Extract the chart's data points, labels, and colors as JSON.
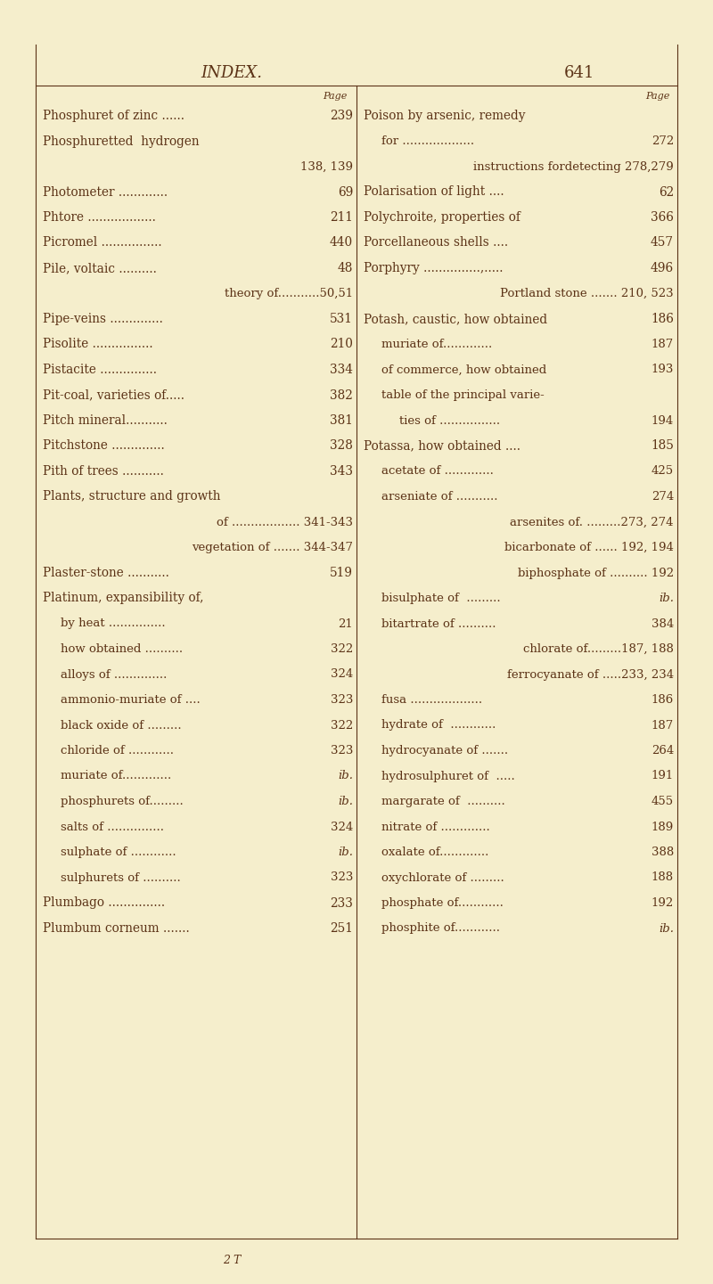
{
  "bg": "#f5eecc",
  "tc": "#5c3317",
  "page_title": "INDEX.",
  "page_number": "641",
  "figw": 8.0,
  "figh": 14.41,
  "dpi": 100,
  "left_lines": [
    {
      "text": "Phosphuret of zinc ......",
      "page": "239",
      "caps": true,
      "indent": 0
    },
    {
      "text": "Phosphuretted  hydrogen",
      "page": "",
      "caps": true,
      "indent": 0
    },
    {
      "text": "138, 139",
      "page": "",
      "caps": false,
      "indent": 2,
      "right_align_text": true
    },
    {
      "text": "Photometer .............",
      "page": "69",
      "caps": true,
      "indent": 0
    },
    {
      "text": "Phtore ..................",
      "page": "211",
      "caps": true,
      "indent": 0
    },
    {
      "text": "Picromel ................",
      "page": "440",
      "caps": true,
      "indent": 0
    },
    {
      "text": "Pile, voltaic ..........",
      "page": "48",
      "caps": true,
      "indent": 0
    },
    {
      "text": "theory of...........50,51",
      "page": "",
      "caps": false,
      "indent": 1,
      "right_align_text": true
    },
    {
      "text": "Pipe-veins ..............",
      "page": "531",
      "caps": true,
      "indent": 0
    },
    {
      "text": "Pisolite ................",
      "page": "210",
      "caps": true,
      "indent": 0
    },
    {
      "text": "Pistacite ...............",
      "page": "334",
      "caps": true,
      "indent": 0
    },
    {
      "text": "Pit-coal, varieties of.....",
      "page": "382",
      "caps": true,
      "indent": 0
    },
    {
      "text": "Pitch mineral...........",
      "page": "381",
      "caps": true,
      "indent": 0
    },
    {
      "text": "Pitchstone ..............",
      "page": "328",
      "caps": true,
      "indent": 0
    },
    {
      "text": "Pith of trees ...........",
      "page": "343",
      "caps": true,
      "indent": 0
    },
    {
      "text": "Plants, structure and growth",
      "page": "",
      "caps": true,
      "indent": 0
    },
    {
      "text": "of .................. 341-343",
      "page": "",
      "caps": false,
      "indent": 1,
      "right_align_text": true
    },
    {
      "text": "vegetation of ....... 344-347",
      "page": "",
      "caps": false,
      "indent": 1,
      "right_align_text": true
    },
    {
      "text": "Plaster-stone ...........",
      "page": "519",
      "caps": true,
      "indent": 0
    },
    {
      "text": "Platinum, expansibility of,",
      "page": "",
      "caps": true,
      "indent": 0
    },
    {
      "text": "by heat ...............",
      "page": "21",
      "caps": false,
      "indent": 1
    },
    {
      "text": "how obtained ..........",
      "page": "322",
      "caps": false,
      "indent": 1
    },
    {
      "text": "alloys of ..............",
      "page": "324",
      "caps": false,
      "indent": 1
    },
    {
      "text": "ammonio-muriate of ....",
      "page": "323",
      "caps": false,
      "indent": 1
    },
    {
      "text": "black oxide of .........",
      "page": "322",
      "caps": false,
      "indent": 1
    },
    {
      "text": "chloride of ............",
      "page": "323",
      "caps": false,
      "indent": 1
    },
    {
      "text": "muriate of.............",
      "page": "ib.",
      "caps": false,
      "indent": 1
    },
    {
      "text": "phosphurets of.........",
      "page": "ib.",
      "caps": false,
      "indent": 1
    },
    {
      "text": "salts of ...............",
      "page": "324",
      "caps": false,
      "indent": 1
    },
    {
      "text": "sulphate of ............",
      "page": "ib.",
      "caps": false,
      "indent": 1
    },
    {
      "text": "sulphurets of ..........",
      "page": "323",
      "caps": false,
      "indent": 1
    },
    {
      "text": "Plumbago ...............",
      "page": "233",
      "caps": true,
      "indent": 0
    },
    {
      "text": "Plumbum corneum .......",
      "page": "251",
      "caps": true,
      "indent": 0
    }
  ],
  "right_lines": [
    {
      "text": "Poison by arsenic, remedy",
      "page": "",
      "caps": true,
      "indent": 0
    },
    {
      "text": "for ...................",
      "page": "272",
      "caps": false,
      "indent": 1
    },
    {
      "text": "instructions fordetecting 278,279",
      "page": "",
      "caps": false,
      "indent": 1,
      "right_align_text": true
    },
    {
      "text": "Polarisation of light ....",
      "page": "62",
      "caps": true,
      "indent": 0
    },
    {
      "text": "Polychroite, properties of",
      "page": "366",
      "caps": true,
      "indent": 0
    },
    {
      "text": "Porcellaneous shells ....",
      "page": "457",
      "caps": true,
      "indent": 0
    },
    {
      "text": "Porphyry ...............,.....",
      "page": "496",
      "caps": true,
      "indent": 0
    },
    {
      "text": "Portland stone ....... 210, 523",
      "page": "",
      "caps": true,
      "indent": 0,
      "right_align_text": true
    },
    {
      "text": "Potash, caustic, how obtained",
      "page": "186",
      "caps": true,
      "indent": 0
    },
    {
      "text": "muriate of.............",
      "page": "187",
      "caps": false,
      "indent": 1
    },
    {
      "text": "of commerce, how obtained",
      "page": "193",
      "caps": false,
      "indent": 1
    },
    {
      "text": "table of the principal varie-",
      "page": "",
      "caps": false,
      "indent": 1
    },
    {
      "text": "ties of ................",
      "page": "194",
      "caps": false,
      "indent": 2
    },
    {
      "text": "Potassa, how obtained ....",
      "page": "185",
      "caps": true,
      "indent": 0
    },
    {
      "text": "acetate of .............",
      "page": "425",
      "caps": false,
      "indent": 1
    },
    {
      "text": "arseniate of ...........",
      "page": "274",
      "caps": false,
      "indent": 1
    },
    {
      "text": "arsenites of. .........273, 274",
      "page": "",
      "caps": false,
      "indent": 1,
      "right_align_text": true
    },
    {
      "text": "bicarbonate of ...... 192, 194",
      "page": "",
      "caps": false,
      "indent": 1,
      "right_align_text": true
    },
    {
      "text": "biphosphate of .......... 192",
      "page": "",
      "caps": false,
      "indent": 1,
      "right_align_text": true
    },
    {
      "text": "bisulphate of  .........",
      "page": "ib.",
      "caps": false,
      "indent": 1
    },
    {
      "text": "bitartrate of ..........",
      "page": "384",
      "caps": false,
      "indent": 1
    },
    {
      "text": "chlorate of.........187, 188",
      "page": "",
      "caps": false,
      "indent": 1,
      "right_align_text": true
    },
    {
      "text": "ferrocyanate of .....233, 234",
      "page": "",
      "caps": false,
      "indent": 1,
      "right_align_text": true
    },
    {
      "text": "fusa ...................",
      "page": "186",
      "caps": false,
      "indent": 1
    },
    {
      "text": "hydrate of  ............",
      "page": "187",
      "caps": false,
      "indent": 1
    },
    {
      "text": "hydrocyanate of .......",
      "page": "264",
      "caps": false,
      "indent": 1
    },
    {
      "text": "hydrosulphuret of  .....",
      "page": "191",
      "caps": false,
      "indent": 1
    },
    {
      "text": "margarate of  ..........",
      "page": "455",
      "caps": false,
      "indent": 1
    },
    {
      "text": "nitrate of .............",
      "page": "189",
      "caps": false,
      "indent": 1
    },
    {
      "text": "oxalate of.............",
      "page": "388",
      "caps": false,
      "indent": 1
    },
    {
      "text": "oxychlorate of .........",
      "page": "188",
      "caps": false,
      "indent": 1
    },
    {
      "text": "phosphate of............",
      "page": "192",
      "caps": false,
      "indent": 1
    },
    {
      "text": "phosphite of............",
      "page": "ib.",
      "caps": false,
      "indent": 1
    }
  ],
  "footer": "2 T"
}
